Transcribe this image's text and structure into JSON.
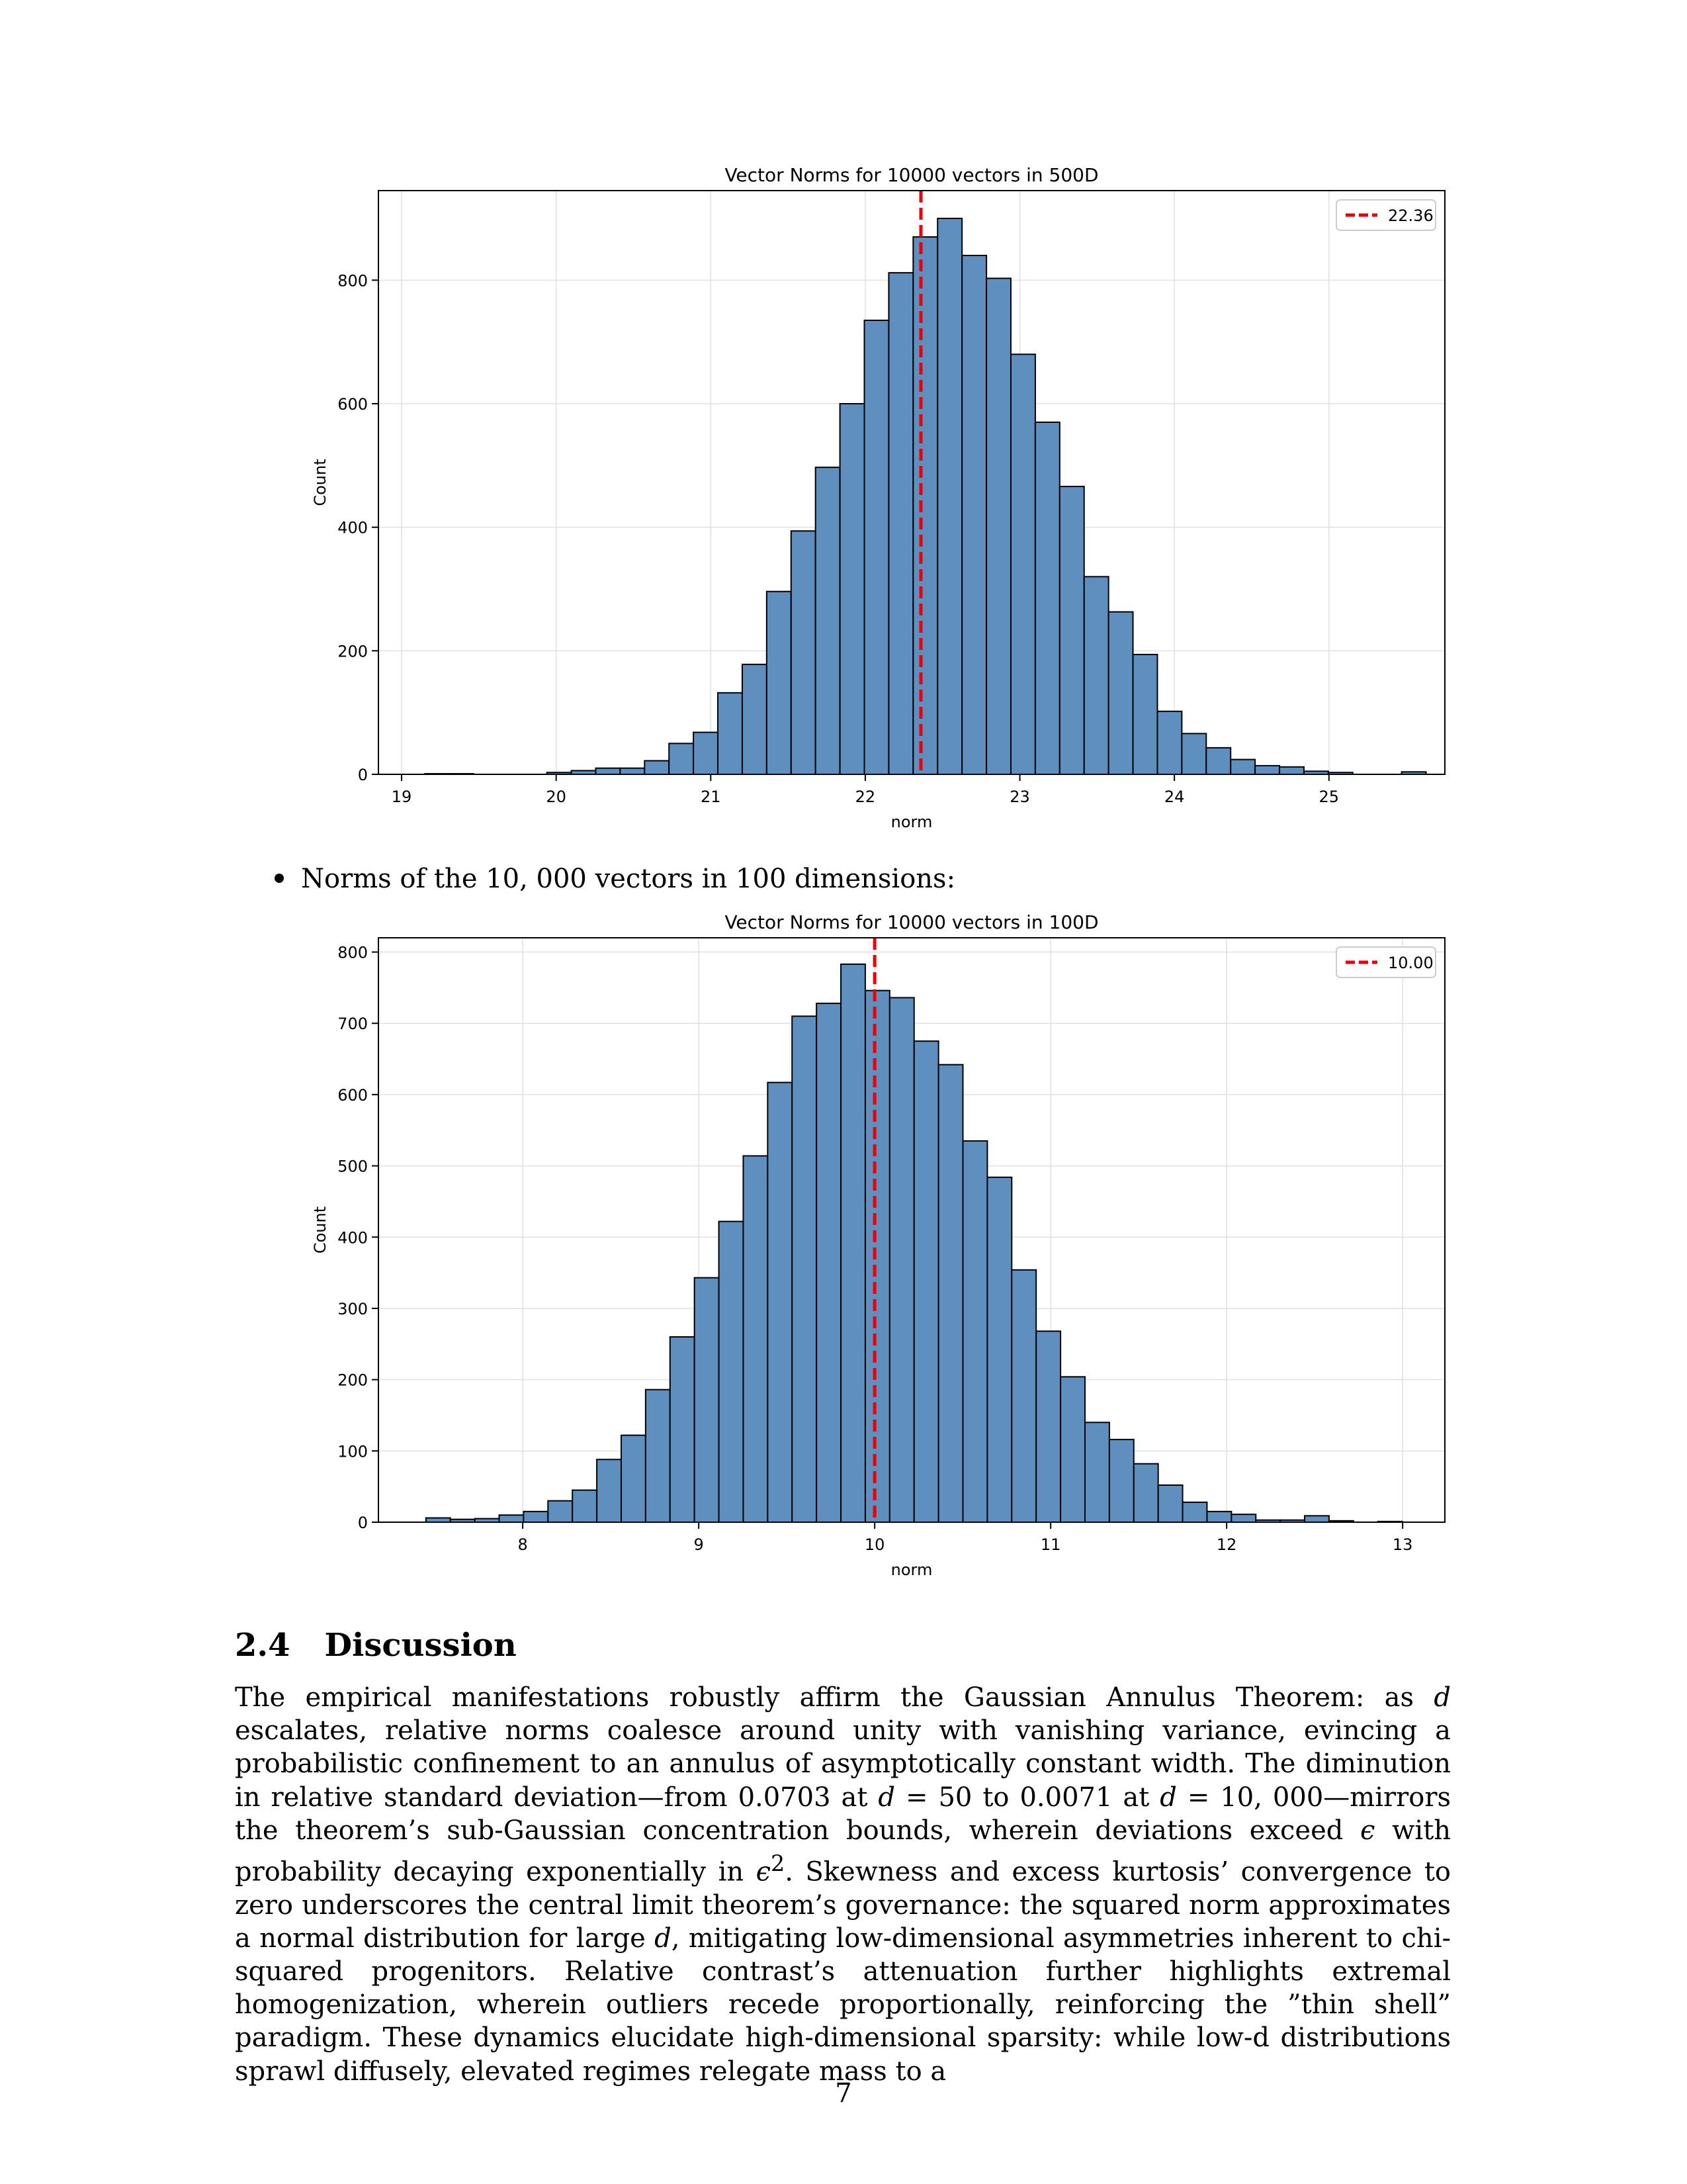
{
  "bullet_text": "Norms of the 10, 000 vectors in 100 dimensions:",
  "section": {
    "number": "2.4",
    "title": "Discussion"
  },
  "paragraph_html": "The empirical manifestations robustly affirm the Gaussian Annulus Theorem: as <i>d</i> escalates, relative norms coalesce around unity with vanishing variance, evincing a probabilistic confinement to an annulus of asymptotically constant width. The diminution in relative standard deviation—from 0.0703 at <i>d</i> = 50 to 0.0071 at <i>d</i> = 10, 000—mirrors the theorem’s sub-Gaussian concentration bounds, wherein deviations exceed <i>ϵ</i> with probability decaying exponentially in <i>ϵ</i><sup>2</sup>. Skewness and excess kurtosis’ convergence to zero underscores the central limit theorem’s governance: the squared norm approximates a normal distribution for large <i>d</i>, mitigating low-dimensional asymmetries inherent to chi-squared progenitors. Relative contrast’s attenuation further highlights extremal homogenization, wherein outliers recede proportionally, reinforcing the ”thin shell” paradigm. These dynamics elucidate high-dimensional sparsity: while low-d distributions sprawl diffusely, elevated regimes relegate mass to a",
  "page_number": "7",
  "colors": {
    "bar_fill": "#5f8fbf",
    "bar_edge": "#000000",
    "mean_line": "#e8000b",
    "grid": "#e0e0e0"
  },
  "chart_data": [
    {
      "type": "bar",
      "title": "Vector Norms for 10000 vectors in 500D",
      "xlabel": "norm",
      "ylabel": "Count",
      "xlim": [
        18.85,
        25.75
      ],
      "ylim": [
        0,
        945
      ],
      "xticks": [
        19,
        20,
        21,
        22,
        23,
        24,
        25
      ],
      "yticks": [
        0,
        200,
        400,
        600,
        800
      ],
      "grid": true,
      "legend_position": "top-right",
      "bin_start": 19.15,
      "bin_width": 0.158,
      "values": [
        1,
        1,
        0,
        0,
        0,
        3,
        6,
        10,
        10,
        22,
        50,
        68,
        132,
        178,
        296,
        394,
        497,
        600,
        735,
        812,
        870,
        900,
        840,
        803,
        680,
        570,
        466,
        320,
        263,
        194,
        102,
        66,
        43,
        24,
        14,
        12,
        5,
        3,
        0,
        0,
        4
      ],
      "reference_line": {
        "x": 22.36,
        "label": "22.36"
      }
    },
    {
      "type": "bar",
      "title": "Vector Norms for 10000 vectors in 100D",
      "xlabel": "norm",
      "ylabel": "Count",
      "xlim": [
        7.18,
        13.24
      ],
      "ylim": [
        0,
        820
      ],
      "xticks": [
        8,
        9,
        10,
        11,
        12,
        13
      ],
      "yticks": [
        0,
        100,
        200,
        300,
        400,
        500,
        600,
        700,
        800
      ],
      "grid": true,
      "legend_position": "top-right",
      "bin_start": 7.45,
      "bin_width": 0.1387,
      "values": [
        6,
        4,
        5,
        10,
        15,
        30,
        45,
        88,
        122,
        186,
        260,
        343,
        422,
        514,
        617,
        710,
        728,
        783,
        746,
        736,
        675,
        642,
        535,
        484,
        354,
        268,
        204,
        140,
        116,
        82,
        52,
        28,
        15,
        11,
        3,
        3,
        9,
        2,
        0,
        1
      ],
      "reference_line": {
        "x": 10.0,
        "label": "10.00"
      }
    }
  ]
}
